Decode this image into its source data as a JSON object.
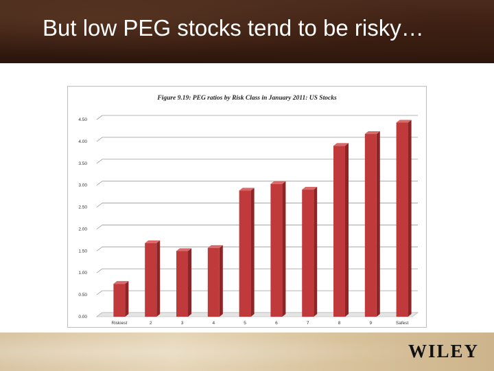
{
  "slide": {
    "title": "But low PEG stocks tend to be risky…",
    "logo": "WILEY"
  },
  "colors": {
    "bar_front": "#c0393b",
    "bar_side": "#8d2426",
    "bar_top": "#d96a6a",
    "gridline": "#9a9a9a"
  },
  "chart_data": {
    "type": "bar",
    "title": "Figure 9.19: PEG ratios by Risk Class in January 2011: US Stocks",
    "xlabel": "",
    "ylabel": "",
    "ylim": [
      0,
      4.5
    ],
    "yticks": [
      "0.00",
      "0.50",
      "1.00",
      "1.50",
      "2.00",
      "2.50",
      "3.00",
      "3.50",
      "4.00",
      "4.50"
    ],
    "categories": [
      "Riskiest",
      "2",
      "3",
      "4",
      "5",
      "6",
      "7",
      "8",
      "9",
      "Safest"
    ],
    "values": [
      0.75,
      1.68,
      1.5,
      1.57,
      2.88,
      3.03,
      2.9,
      3.9,
      4.17,
      4.43
    ],
    "grid": true,
    "legend": "none"
  }
}
